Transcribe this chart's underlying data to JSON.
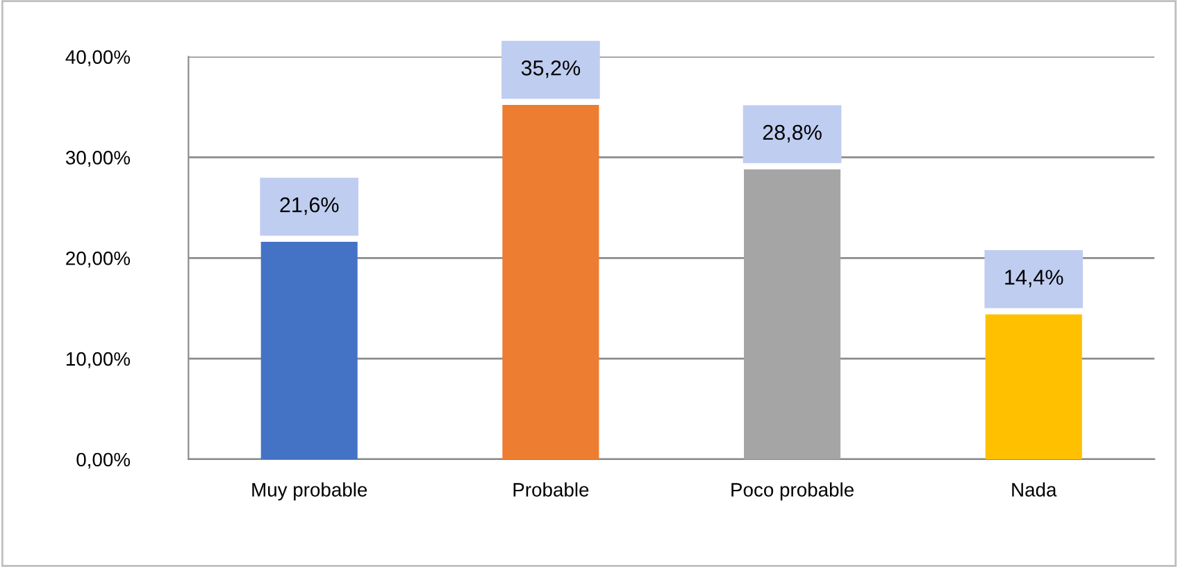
{
  "chart_data": {
    "type": "bar",
    "categories": [
      "Muy probable",
      "Probable",
      "Poco probable",
      "Nada"
    ],
    "values": [
      21.6,
      35.2,
      28.8,
      14.4
    ],
    "colors": [
      "#4472c4",
      "#ed7d31",
      "#a5a5a5",
      "#ffc000"
    ],
    "value_labels": [
      "21,6%",
      "35,2%",
      "28,8%",
      "14,4%"
    ],
    "ylim": [
      0,
      40
    ],
    "yticks": [
      {
        "value": 0,
        "label": "0,00%"
      },
      {
        "value": 10,
        "label": "10,00%"
      },
      {
        "value": 20,
        "label": "20,00%"
      },
      {
        "value": 30,
        "label": "30,00%"
      },
      {
        "value": 40,
        "label": "40,00%"
      }
    ],
    "grid": "y",
    "legend": false
  }
}
